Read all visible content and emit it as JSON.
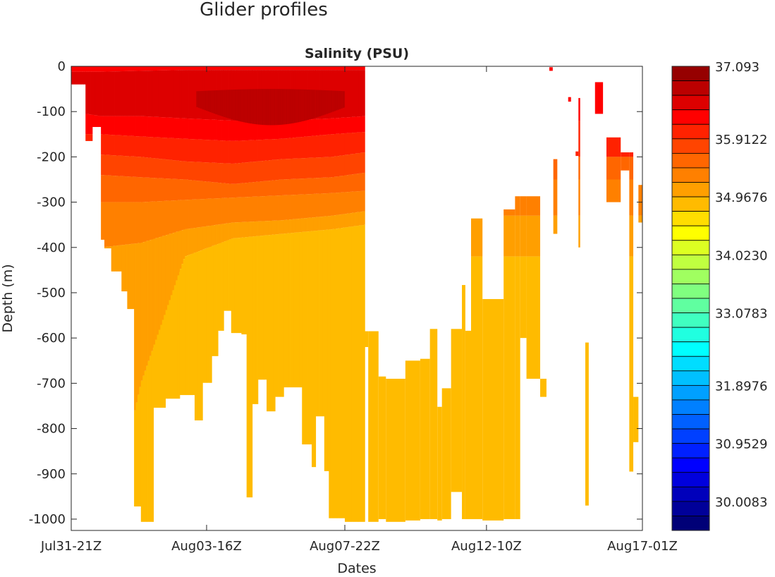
{
  "figure_title": "Glider profiles",
  "chart_data": {
    "type": "heatmap",
    "title": "Salinity  (PSU)",
    "xlabel": "Dates",
    "ylabel": "Depth  (m)",
    "xlim": [
      0,
      100
    ],
    "ylim": [
      -1025,
      0
    ],
    "x_ticks": [
      {
        "value": 0,
        "label": "Jul31-21Z"
      },
      {
        "value": 23.7,
        "label": "Aug03-16Z"
      },
      {
        "value": 47.9,
        "label": "Aug07-22Z"
      },
      {
        "value": 72.7,
        "label": "Aug12-10Z"
      },
      {
        "value": 100,
        "label": "Aug17-01Z"
      }
    ],
    "y_ticks": [
      0,
      -100,
      -200,
      -300,
      -400,
      -500,
      -600,
      -700,
      -800,
      -900,
      -1000
    ],
    "grid": false,
    "colorbar": {
      "range": [
        29.535,
        37.093
      ],
      "levels": 32,
      "colors": [
        "#960000",
        "#bb0000",
        "#dd0000",
        "#ff0000",
        "#ff2200",
        "#ff4400",
        "#ff6600",
        "#ff8000",
        "#ff9f00",
        "#ffbb00",
        "#ffdd00",
        "#ffff00",
        "#ddff22",
        "#c0ff40",
        "#a0ff60",
        "#80ff80",
        "#60ffa0",
        "#40ffc0",
        "#20ffe0",
        "#00ffff",
        "#00ddff",
        "#00c0ff",
        "#00a0ff",
        "#0080ff",
        "#0060ff",
        "#0040ff",
        "#0020ff",
        "#0000ff",
        "#0000dd",
        "#0000bb",
        "#000099",
        "#000077"
      ],
      "tick_labels": [
        {
          "value": 37.093,
          "label": "37.093"
        },
        {
          "value": 35.9122,
          "label": "35.9122"
        },
        {
          "value": 34.9676,
          "label": "34.9676"
        },
        {
          "value": 34.023,
          "label": "34.0230"
        },
        {
          "value": 33.0783,
          "label": "33.0783"
        },
        {
          "value": 31.8976,
          "label": "31.8976"
        },
        {
          "value": 30.9529,
          "label": "30.9529"
        },
        {
          "value": 30.0083,
          "label": "30.0083"
        }
      ]
    },
    "block1_layer_knots_x": [
      0,
      5.2,
      12.2,
      19.9,
      28.3,
      36.9,
      45.6,
      51.4
    ],
    "block1_layers": [
      {
        "color": 3,
        "bottom": [
          -12,
          -12,
          -10,
          -8,
          -8,
          -8,
          -8,
          -8
        ]
      },
      {
        "color": 2,
        "bottom": [
          -100,
          -110,
          -110,
          -115,
          -120,
          -120,
          -115,
          -110
        ]
      },
      {
        "color": 3,
        "bottom": [
          -150,
          -150,
          -155,
          -160,
          -165,
          -160,
          -150,
          -145
        ]
      },
      {
        "color": 4,
        "bottom": [
          -195,
          -195,
          -200,
          -210,
          -215,
          -205,
          -200,
          -190
        ]
      },
      {
        "color": 5,
        "bottom": [
          -240,
          -240,
          -245,
          -250,
          -260,
          -250,
          -245,
          -235
        ]
      },
      {
        "color": 6,
        "bottom": [
          -300,
          -300,
          -300,
          -295,
          -290,
          -285,
          -280,
          -275
        ]
      },
      {
        "color": 7,
        "bottom": [
          -400,
          -400,
          -390,
          -360,
          -345,
          -340,
          -330,
          -320
        ]
      },
      {
        "color": 8,
        "bottom": [
          -1100,
          -1100,
          -700,
          -420,
          -380,
          -370,
          -360,
          -350
        ]
      },
      {
        "color": 9,
        "bottom": [
          -1100,
          -1100,
          -1100,
          -1100,
          -1100,
          -1100,
          -1100,
          -1100
        ]
      }
    ],
    "block1_core": {
      "color": 1,
      "x": [
        22,
        48
      ],
      "top": -50,
      "bottom": -130
    },
    "block1_segments": [
      [
        0,
        2.5,
        -40
      ],
      [
        2.5,
        3.7,
        -165
      ],
      [
        3.7,
        5.2,
        -134
      ],
      [
        5.2,
        5.8,
        -383
      ],
      [
        5.8,
        7.0,
        -402
      ],
      [
        7.0,
        8.8,
        -453
      ],
      [
        8.8,
        9.8,
        -497
      ],
      [
        9.8,
        11.0,
        -536
      ],
      [
        11.0,
        12.2,
        -972
      ],
      [
        12.2,
        14.4,
        -1006
      ],
      [
        14.4,
        16.5,
        -754
      ],
      [
        16.5,
        19.0,
        -734
      ],
      [
        19.0,
        21.6,
        -726
      ],
      [
        21.6,
        23.0,
        -782
      ],
      [
        23.0,
        24.6,
        -699
      ],
      [
        24.6,
        25.7,
        -640
      ],
      [
        25.7,
        26.7,
        -584
      ],
      [
        26.7,
        28.0,
        -540
      ],
      [
        28.0,
        29.8,
        -589
      ],
      [
        29.8,
        30.7,
        -592
      ],
      [
        30.7,
        31.7,
        -952
      ],
      [
        31.7,
        32.7,
        -746
      ],
      [
        32.7,
        34.2,
        -692
      ],
      [
        34.2,
        35.7,
        -762
      ],
      [
        35.7,
        37.2,
        -730
      ],
      [
        37.2,
        40.4,
        -709
      ],
      [
        40.4,
        42.1,
        -835
      ],
      [
        42.1,
        42.8,
        -885
      ],
      [
        42.8,
        44.3,
        -773
      ],
      [
        44.3,
        45.1,
        -894
      ],
      [
        45.1,
        47.9,
        -998
      ],
      [
        47.9,
        51.4,
        -1006
      ]
    ],
    "depth_colors": [
      {
        "above": -120,
        "color": 3
      },
      {
        "above": -200,
        "color": 4
      },
      {
        "above": -250,
        "color": 6
      },
      {
        "above": -330,
        "color": 7
      },
      {
        "above": -420,
        "color": 8
      },
      {
        "above": -1100,
        "color": 9
      }
    ],
    "block2_segments": [
      [
        51.4,
        52.0,
        -585,
        -620
      ],
      [
        52.0,
        53.8,
        -585,
        -1006
      ],
      [
        53.8,
        55.1,
        -685,
        -1000
      ],
      [
        55.1,
        58.5,
        -690,
        -1006
      ],
      [
        58.5,
        61.1,
        -650,
        -1003
      ],
      [
        61.1,
        62.8,
        -646,
        -1000
      ],
      [
        62.8,
        64.1,
        -580,
        -1000
      ],
      [
        64.1,
        64.9,
        -752,
        -1003
      ],
      [
        64.9,
        66.5,
        -711,
        -1000
      ],
      [
        66.5,
        68.4,
        -580,
        -940
      ],
      [
        68.4,
        69.0,
        -483,
        -1000
      ],
      [
        69.0,
        70.0,
        -584,
        -1000
      ],
      [
        70.0,
        72.0,
        -336,
        -1000
      ],
      [
        72.0,
        75.7,
        -514,
        -1003
      ],
      [
        75.7,
        77.7,
        -316,
        -1000
      ],
      [
        77.7,
        78.6,
        -287,
        -1000
      ],
      [
        78.6,
        79.7,
        -287,
        -600
      ],
      [
        79.7,
        82.1,
        -287,
        -690
      ],
      [
        82.1,
        83.2,
        -690,
        -730
      ],
      [
        83.7,
        84.3,
        -2,
        -10
      ],
      [
        84.4,
        85.1,
        -205,
        -370
      ],
      [
        87.0,
        87.5,
        -68,
        -78
      ],
      [
        88.3,
        88.8,
        -188,
        -198
      ],
      [
        88.8,
        89.1,
        -70,
        -400
      ],
      [
        90.0,
        90.6,
        -610,
        -970
      ],
      [
        91.7,
        93.1,
        -35,
        -105
      ],
      [
        93.7,
        96.2,
        -157,
        -300
      ],
      [
        96.2,
        97.7,
        -190,
        -230
      ],
      [
        97.7,
        98.4,
        -190,
        -895
      ],
      [
        98.4,
        99.3,
        -730,
        -830
      ],
      [
        99.3,
        100,
        -262,
        -345
      ]
    ]
  }
}
